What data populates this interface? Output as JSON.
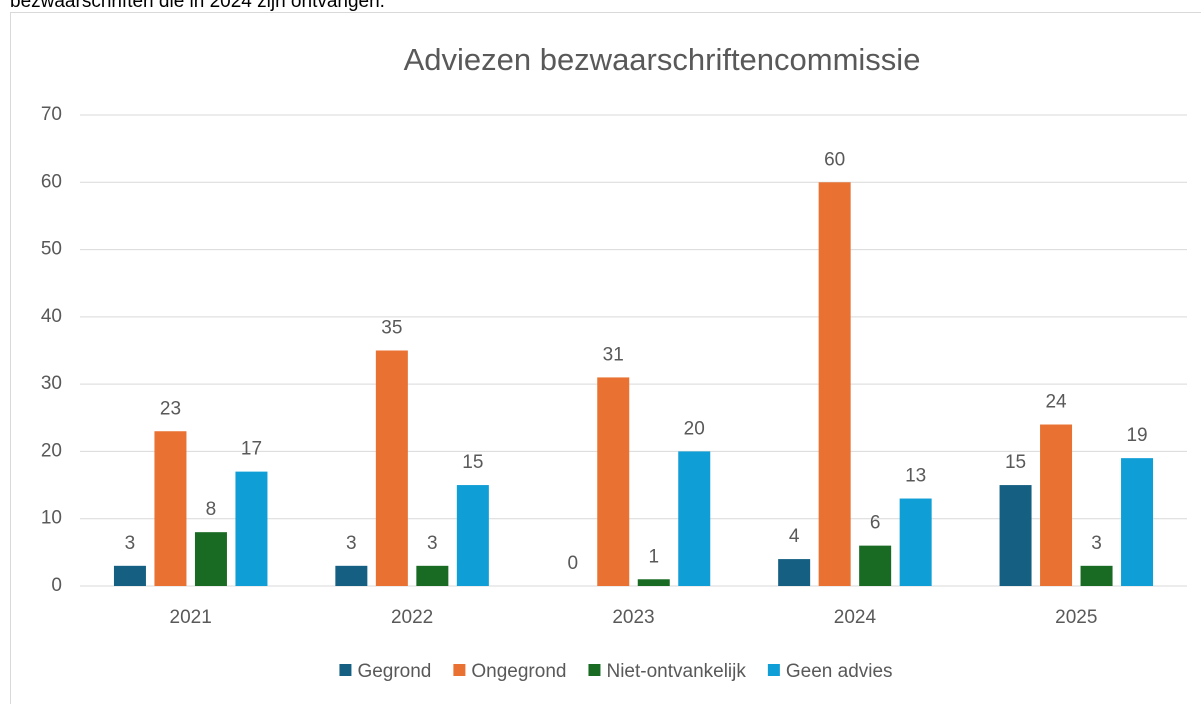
{
  "page_text": "bezwaarschriften die in 2024 zijn ontvangen.",
  "chart_data": {
    "type": "bar",
    "title": "Adviezen bezwaarschriftencommissie",
    "categories": [
      "2021",
      "2022",
      "2023",
      "2024",
      "2025"
    ],
    "series": [
      {
        "name": "Gegrond",
        "color": "#156082",
        "values": [
          3,
          3,
          0,
          4,
          15
        ]
      },
      {
        "name": "Ongegrond",
        "color": "#e97132",
        "values": [
          23,
          35,
          31,
          60,
          24
        ]
      },
      {
        "name": "Niet-ontvankelijk",
        "color": "#196b24",
        "values": [
          8,
          3,
          1,
          6,
          3
        ]
      },
      {
        "name": "Geen advies",
        "color": "#0f9ed5",
        "values": [
          17,
          15,
          20,
          13,
          19
        ]
      }
    ],
    "ylim": [
      0,
      70
    ],
    "yticks": [
      0,
      10,
      20,
      30,
      40,
      50,
      60,
      70
    ],
    "grid": true,
    "legend": "bottom"
  }
}
